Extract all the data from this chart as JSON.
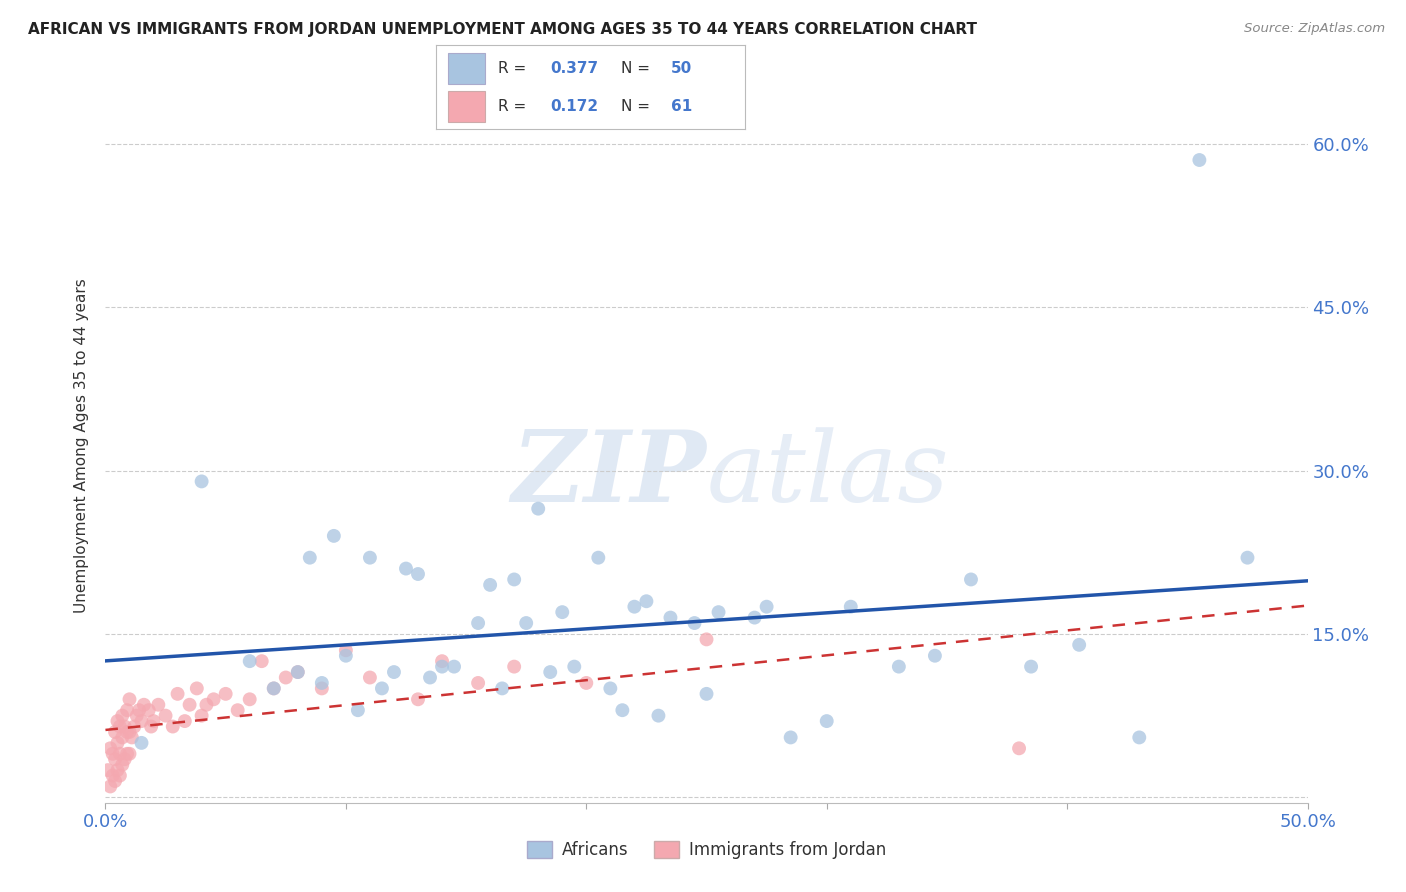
{
  "title": "AFRICAN VS IMMIGRANTS FROM JORDAN UNEMPLOYMENT AMONG AGES 35 TO 44 YEARS CORRELATION CHART",
  "source": "Source: ZipAtlas.com",
  "ylabel": "Unemployment Among Ages 35 to 44 years",
  "xlim": [
    0.0,
    0.5
  ],
  "ylim": [
    -0.005,
    0.65
  ],
  "xticks": [
    0.0,
    0.1,
    0.2,
    0.3,
    0.4,
    0.5
  ],
  "yticks": [
    0.0,
    0.15,
    0.3,
    0.45,
    0.6
  ],
  "blue_R": "0.377",
  "blue_N": "50",
  "pink_R": "0.172",
  "pink_N": "61",
  "legend_label_blue": "Africans",
  "legend_label_pink": "Immigrants from Jordan",
  "blue_color": "#A8C4E0",
  "pink_color": "#F4A8B0",
  "blue_line_color": "#2255AA",
  "pink_line_color": "#CC3333",
  "text_color_blue": "#4477CC",
  "watermark_color": "#D8E8F4",
  "background_color": "#FFFFFF",
  "grid_color": "#CCCCCC",
  "blue_x": [
    0.015,
    0.04,
    0.06,
    0.07,
    0.08,
    0.085,
    0.09,
    0.095,
    0.1,
    0.105,
    0.11,
    0.115,
    0.12,
    0.125,
    0.13,
    0.135,
    0.14,
    0.145,
    0.155,
    0.16,
    0.165,
    0.17,
    0.175,
    0.18,
    0.185,
    0.19,
    0.195,
    0.205,
    0.21,
    0.215,
    0.22,
    0.225,
    0.23,
    0.235,
    0.245,
    0.25,
    0.255,
    0.27,
    0.275,
    0.285,
    0.3,
    0.31,
    0.33,
    0.345,
    0.36,
    0.385,
    0.405,
    0.43,
    0.455,
    0.475
  ],
  "blue_y": [
    0.05,
    0.29,
    0.125,
    0.1,
    0.115,
    0.22,
    0.105,
    0.24,
    0.13,
    0.08,
    0.22,
    0.1,
    0.115,
    0.21,
    0.205,
    0.11,
    0.12,
    0.12,
    0.16,
    0.195,
    0.1,
    0.2,
    0.16,
    0.265,
    0.115,
    0.17,
    0.12,
    0.22,
    0.1,
    0.08,
    0.175,
    0.18,
    0.075,
    0.165,
    0.16,
    0.095,
    0.17,
    0.165,
    0.175,
    0.055,
    0.07,
    0.175,
    0.12,
    0.13,
    0.2,
    0.12,
    0.14,
    0.055,
    0.585,
    0.22
  ],
  "pink_x": [
    0.001,
    0.002,
    0.002,
    0.003,
    0.003,
    0.004,
    0.004,
    0.004,
    0.005,
    0.005,
    0.005,
    0.006,
    0.006,
    0.006,
    0.007,
    0.007,
    0.007,
    0.008,
    0.008,
    0.009,
    0.009,
    0.009,
    0.01,
    0.01,
    0.01,
    0.011,
    0.012,
    0.013,
    0.014,
    0.015,
    0.016,
    0.018,
    0.019,
    0.02,
    0.022,
    0.025,
    0.028,
    0.03,
    0.033,
    0.035,
    0.038,
    0.04,
    0.042,
    0.045,
    0.05,
    0.055,
    0.06,
    0.065,
    0.07,
    0.075,
    0.08,
    0.09,
    0.1,
    0.11,
    0.13,
    0.14,
    0.155,
    0.17,
    0.2,
    0.25,
    0.38
  ],
  "pink_y": [
    0.025,
    0.01,
    0.045,
    0.02,
    0.04,
    0.015,
    0.035,
    0.06,
    0.025,
    0.05,
    0.07,
    0.02,
    0.04,
    0.065,
    0.03,
    0.055,
    0.075,
    0.035,
    0.065,
    0.04,
    0.06,
    0.08,
    0.04,
    0.06,
    0.09,
    0.055,
    0.065,
    0.075,
    0.08,
    0.07,
    0.085,
    0.08,
    0.065,
    0.07,
    0.085,
    0.075,
    0.065,
    0.095,
    0.07,
    0.085,
    0.1,
    0.075,
    0.085,
    0.09,
    0.095,
    0.08,
    0.09,
    0.125,
    0.1,
    0.11,
    0.115,
    0.1,
    0.135,
    0.11,
    0.09,
    0.125,
    0.105,
    0.12,
    0.105,
    0.145,
    0.045
  ]
}
